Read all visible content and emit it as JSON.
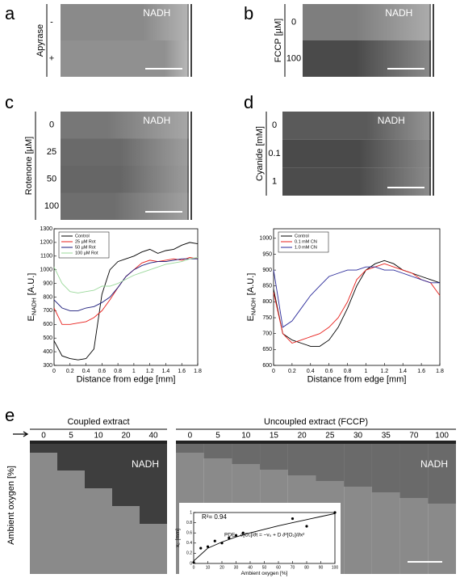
{
  "panels": {
    "a": {
      "label": "a",
      "axis_label": "Apyrase",
      "rows": [
        "-",
        "+"
      ],
      "stain": "NADH"
    },
    "b": {
      "label": "b",
      "axis_label": "FCCP [µM]",
      "rows": [
        "0",
        "100"
      ],
      "stain": "NADH"
    },
    "c": {
      "label": "c",
      "axis_label": "Rotenone [µM]",
      "rows": [
        "0",
        "25",
        "50",
        "100"
      ],
      "stain": "NADH"
    },
    "d": {
      "label": "d",
      "axis_label": "Cyanide [mM]",
      "rows": [
        "0",
        "0.1",
        "1"
      ],
      "stain": "NADH"
    },
    "e": {
      "label": "e",
      "axis_label": "Ambient oxygen [%]",
      "groups": [
        {
          "title": "Coupled extract",
          "columns": [
            "0",
            "5",
            "10",
            "20",
            "40"
          ],
          "stain": "NADH"
        },
        {
          "title": "Uncoupled extract (FCCP)",
          "columns": [
            "0",
            "5",
            "10",
            "15",
            "20",
            "25",
            "30",
            "35",
            "70",
            "100"
          ],
          "stain": "NADH"
        }
      ]
    }
  },
  "chart_data": [
    {
      "type": "line",
      "xlabel": "Distance from edge [mm]",
      "ylabel": "E",
      "ylabel_sub": "NADH",
      "ylabel_unit": "[A.U.]",
      "x": [
        0,
        0.1,
        0.2,
        0.3,
        0.4,
        0.5,
        0.6,
        0.7,
        0.8,
        0.9,
        1.0,
        1.1,
        1.2,
        1.3,
        1.4,
        1.5,
        1.6,
        1.7,
        1.8
      ],
      "series": [
        {
          "name": "Control",
          "color": "#000000",
          "values": [
            480,
            370,
            350,
            340,
            350,
            420,
            820,
            1000,
            1060,
            1080,
            1100,
            1130,
            1150,
            1120,
            1140,
            1150,
            1180,
            1200,
            1190
          ]
        },
        {
          "name": "25 µM Rot",
          "color": "#e8201c",
          "values": [
            720,
            600,
            600,
            610,
            620,
            650,
            700,
            780,
            870,
            950,
            1000,
            1050,
            1070,
            1060,
            1070,
            1080,
            1070,
            1090,
            1080
          ]
        },
        {
          "name": "50 µM Rot",
          "color": "#1a1a7a",
          "values": [
            780,
            720,
            700,
            700,
            720,
            730,
            760,
            800,
            870,
            950,
            1000,
            1030,
            1050,
            1060,
            1060,
            1070,
            1080,
            1080,
            1080
          ]
        },
        {
          "name": "100 µM Rot",
          "color": "#9ad89a",
          "values": [
            1020,
            900,
            840,
            830,
            840,
            850,
            880,
            880,
            900,
            930,
            960,
            980,
            1000,
            1020,
            1040,
            1050,
            1060,
            1080,
            1090
          ]
        }
      ],
      "xlim": [
        0,
        1.8
      ],
      "xticks": [
        0,
        0.2,
        0.4,
        0.6,
        0.8,
        1,
        1.2,
        1.4,
        1.6,
        1.8
      ],
      "ylim": [
        300,
        1300
      ],
      "yticks": [
        300,
        400,
        500,
        600,
        700,
        800,
        900,
        1000,
        1100,
        1200,
        1300
      ],
      "legend": "upper left"
    },
    {
      "type": "line",
      "xlabel": "Distance from edge [mm]",
      "ylabel": "E",
      "ylabel_sub": "NADH",
      "ylabel_unit": "[A.U.]",
      "x": [
        0,
        0.1,
        0.2,
        0.3,
        0.4,
        0.5,
        0.6,
        0.7,
        0.8,
        0.9,
        1.0,
        1.1,
        1.2,
        1.3,
        1.4,
        1.5,
        1.6,
        1.7,
        1.8
      ],
      "series": [
        {
          "name": "Control",
          "color": "#000000",
          "values": [
            840,
            700,
            680,
            670,
            660,
            660,
            680,
            720,
            780,
            850,
            900,
            920,
            930,
            920,
            900,
            890,
            880,
            870,
            860
          ]
        },
        {
          "name": "0.1 mM CN",
          "color": "#e8201c",
          "values": [
            830,
            700,
            670,
            680,
            690,
            700,
            720,
            750,
            800,
            870,
            900,
            910,
            920,
            910,
            900,
            890,
            870,
            860,
            820
          ]
        },
        {
          "name": "1.0 mM CN",
          "color": "#2a2a9a",
          "values": [
            900,
            720,
            740,
            780,
            820,
            850,
            880,
            890,
            900,
            900,
            910,
            910,
            900,
            900,
            890,
            880,
            870,
            860,
            860
          ]
        }
      ],
      "xlim": [
        0,
        1.8
      ],
      "xticks": [
        0,
        0.2,
        0.4,
        0.6,
        0.8,
        1,
        1.2,
        1.4,
        1.6,
        1.8
      ],
      "ylim": [
        600,
        1030
      ],
      "yticks": [
        600,
        650,
        700,
        750,
        800,
        850,
        900,
        950,
        1000
      ],
      "legend": "upper left"
    },
    {
      "type": "scatter",
      "xlabel": "Ambient oxygen [%]",
      "ylabel": "x",
      "ylabel_sub": "c",
      "ylabel_unit": "[mm]",
      "annotation": "R²= 0.94",
      "equation_label": "PDE:",
      "equation": "∂[O₂]/∂t = −v₀ + D ∂²[O₂]/∂x²",
      "x": [
        0,
        5,
        10,
        15,
        20,
        25,
        30,
        35,
        70,
        80,
        100
      ],
      "values": [
        0.02,
        0.3,
        0.33,
        0.44,
        0.4,
        0.5,
        0.55,
        0.6,
        0.88,
        0.73,
        1.0
      ],
      "color": "#000000",
      "fit": {
        "x": [
          0,
          10,
          20,
          30,
          40,
          50,
          60,
          70,
          80,
          90,
          100
        ],
        "values": [
          0.05,
          0.3,
          0.42,
          0.52,
          0.6,
          0.67,
          0.74,
          0.8,
          0.86,
          0.92,
          0.98
        ],
        "color": "#000000"
      },
      "xlim": [
        0,
        100
      ],
      "xticks": [
        0,
        10,
        20,
        30,
        40,
        50,
        60,
        70,
        80,
        90,
        100
      ],
      "ylim": [
        0,
        1
      ],
      "yticks": [
        0,
        0.2,
        0.4,
        0.6,
        0.8,
        1
      ]
    }
  ]
}
